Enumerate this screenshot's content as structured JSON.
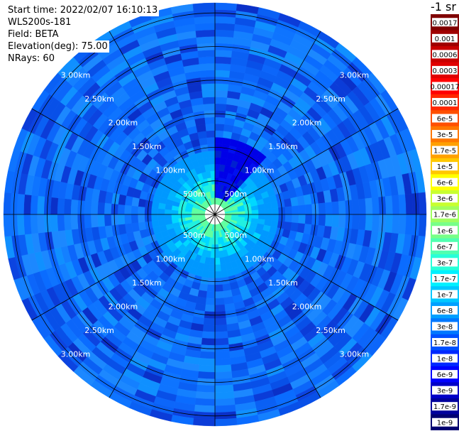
{
  "header": {
    "start_time": "Start time: 2022/02/07 16:10:13",
    "instrument": "WLS200s-181",
    "field": "Field: BETA",
    "elevation": "Elevation(deg): 75.00",
    "nrays": "NRays: 60"
  },
  "plot": {
    "type": "ppi",
    "range_rings_km": [
      0.5,
      1.0,
      1.5,
      2.0,
      2.5,
      3.0
    ],
    "range_labels": [
      "500m",
      "1.00km",
      "1.50km",
      "2.00km",
      "2.50km",
      "3.00km"
    ],
    "max_range_km": 3.15,
    "n_rays": 60,
    "spoke_count": 12,
    "gate_km": 0.1,
    "min_range_km": 0.15,
    "shaded_region_azimuth_deg": [
      0,
      42
    ],
    "shaded_region_range_km": [
      0.2,
      1.1
    ]
  },
  "colorbar": {
    "unit_label": "-1 sr",
    "ticks": [
      "0.0017",
      "0.001",
      "0.0006",
      "0.0003",
      "0.00017",
      "0.0001",
      "6e-5",
      "3e-5",
      "1.7e-5",
      "1e-5",
      "6e-6",
      "3e-6",
      "1.7e-6",
      "1e-6",
      "6e-7",
      "3e-7",
      "1.7e-7",
      "1e-7",
      "6e-8",
      "3e-8",
      "1.7e-8",
      "1e-8",
      "6e-9",
      "3e-9",
      "1.7e-9",
      "1e-9"
    ],
    "colors": [
      "#800000",
      "#a00000",
      "#c80000",
      "#e00000",
      "#ff0000",
      "#ff2800",
      "#ff5000",
      "#ff7800",
      "#ffa000",
      "#ffc800",
      "#ffff00",
      "#c8ff30",
      "#a0ff60",
      "#78ff88",
      "#50ffb0",
      "#28ffd8",
      "#00f0ff",
      "#00c8ff",
      "#00a0ff",
      "#0078ff",
      "#0050ff",
      "#0028ff",
      "#0000ff",
      "#0000c8",
      "#00009c",
      "#000070"
    ]
  }
}
